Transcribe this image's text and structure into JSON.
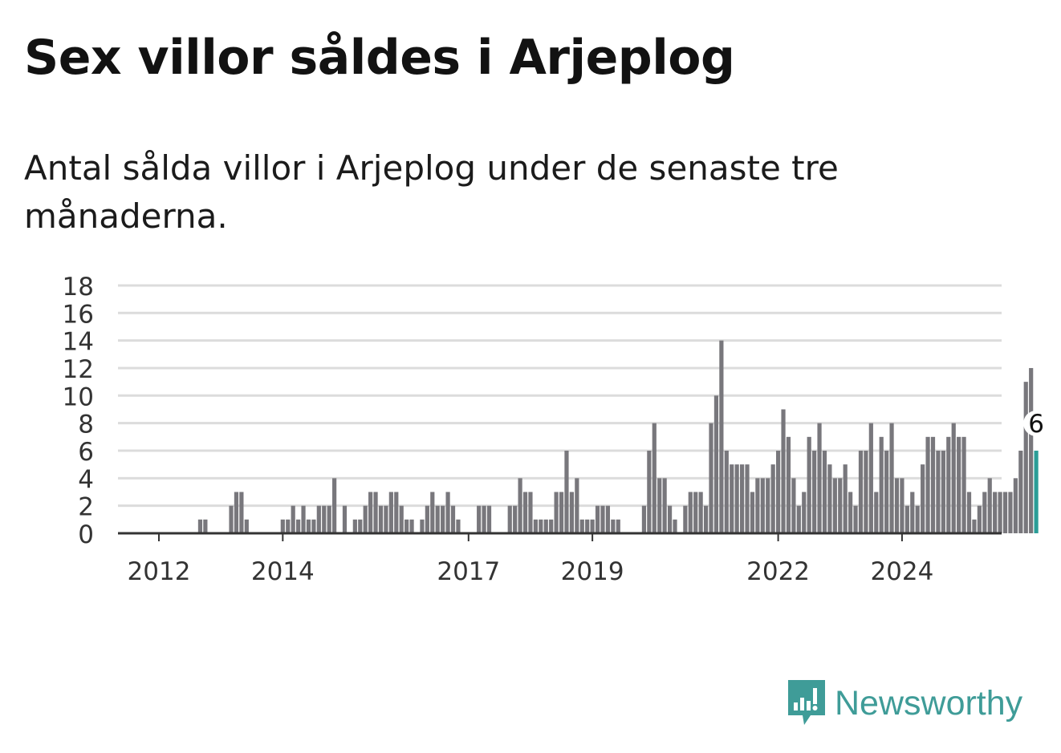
{
  "header": {
    "title": "Sex villor såldes i Arjeplog",
    "subtitle": "Antal sålda villor i Arjeplog under de senaste tre månaderna."
  },
  "brand": {
    "name": "Newsworthy",
    "icon": "newsworthy-logo-icon",
    "color": "#3f9c98"
  },
  "colors": {
    "bar": "#78777c",
    "highlight": "#2b9d97",
    "grid": "#dcdcdc",
    "axis": "#333333"
  },
  "chart_data": {
    "type": "bar",
    "ylim": [
      0,
      18
    ],
    "yticks": [
      "0",
      "2",
      "4",
      "6",
      "8",
      "10",
      "12",
      "14",
      "16",
      "18"
    ],
    "xticks": [
      "2012",
      "2014",
      "2017",
      "2019",
      "2022",
      "2024"
    ],
    "values": [
      0,
      0,
      0,
      0,
      0,
      0,
      0,
      0,
      1,
      1,
      0,
      0,
      0,
      0,
      2,
      3,
      3,
      1,
      0,
      0,
      0,
      0,
      0,
      0,
      1,
      1,
      2,
      1,
      2,
      1,
      1,
      2,
      2,
      2,
      4,
      0,
      2,
      0,
      1,
      1,
      2,
      3,
      3,
      2,
      2,
      3,
      3,
      2,
      1,
      1,
      0,
      1,
      2,
      3,
      2,
      2,
      3,
      2,
      1,
      0,
      0,
      0,
      2,
      2,
      2,
      0,
      0,
      0,
      2,
      2,
      4,
      3,
      3,
      1,
      1,
      1,
      1,
      3,
      3,
      6,
      3,
      4,
      1,
      1,
      1,
      2,
      2,
      2,
      1,
      1,
      0,
      0,
      0,
      0,
      2,
      6,
      8,
      4,
      4,
      2,
      1,
      0,
      2,
      3,
      3,
      3,
      2,
      8,
      10,
      14,
      6,
      5,
      5,
      5,
      5,
      3,
      4,
      4,
      4,
      5,
      6,
      9,
      7,
      4,
      2,
      3,
      7,
      6,
      8,
      6,
      5,
      4,
      4,
      5,
      3,
      2,
      6,
      6,
      8,
      3,
      7,
      6,
      8,
      4,
      4,
      2,
      3,
      2,
      5,
      7,
      7,
      6,
      6,
      7,
      8,
      7,
      7,
      3,
      1,
      2,
      3,
      4,
      3,
      3,
      3,
      3,
      4,
      6,
      11,
      12,
      6
    ],
    "highlight": {
      "value": 6,
      "label": "6"
    }
  }
}
